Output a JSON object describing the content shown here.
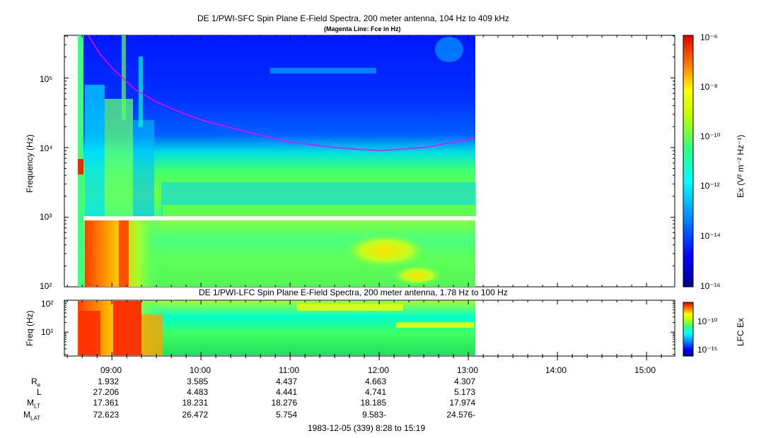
{
  "chart_data": [
    {
      "type": "heatmap",
      "title": "DE 1/PWI-SFC  Spin Plane E-Field Spectra, 200 meter antenna, 104 Hz to 409 kHz",
      "subtitle": "(Magenta Line: Fce in Hz)",
      "ylabel": "Frequency (Hz)",
      "yscale": "log",
      "ylim": [
        100,
        409000
      ],
      "y_ticks": [
        "10²",
        "10³",
        "10⁴",
        "10⁵"
      ],
      "colorbar": {
        "label": "Ex (V² m⁻² Hz⁻¹)",
        "scale": "log",
        "range": [
          1e-16,
          1e-06
        ],
        "ticks": [
          "10⁻⁶",
          "10⁻⁸",
          "10⁻¹⁰",
          "10⁻¹²",
          "10⁻¹⁴",
          "10⁻¹⁶"
        ]
      },
      "series": [
        {
          "name": "Fce",
          "color": "#ff00ff",
          "x": [
            "08:44",
            "08:52",
            "09:00",
            "09:15",
            "09:30",
            "09:45",
            "10:00",
            "10:30",
            "11:00",
            "11:30",
            "12:00",
            "12:30",
            "13:00",
            "13:04"
          ],
          "y": [
            450000,
            220000,
            140000,
            70000,
            45000,
            33000,
            25000,
            17000,
            12000,
            10000,
            9000,
            10000,
            13000,
            14000
          ]
        }
      ]
    },
    {
      "type": "heatmap",
      "title": "DE 1/PWI-LFC  Spin Plane E-Field Spectra, 200 meter antenna, 1.78 Hz to 100 Hz",
      "ylabel": "Freq (Hz)",
      "yscale": "log",
      "ylim": [
        1.78,
        100
      ],
      "y_ticks": [
        "10¹",
        "10²"
      ],
      "colorbar": {
        "label": "LFC Ex",
        "scale": "log",
        "range": [
          1e-16,
          1e-08
        ],
        "ticks": [
          "10⁻¹⁰",
          "10⁻¹⁵"
        ]
      }
    }
  ],
  "x_axis": {
    "ticks": [
      "09:00",
      "10:00",
      "11:00",
      "12:00",
      "13:00",
      "14:00",
      "15:00"
    ],
    "caption": "1983-12-05 (339) 8:28 to 15:19"
  },
  "orbit_rows": [
    {
      "label": "R",
      "sub": "e",
      "values": [
        "1.932",
        "3.585",
        "4.437",
        "4.663",
        "4.307"
      ]
    },
    {
      "label": "L",
      "sub": "",
      "values": [
        "27.206",
        "4.483",
        "4.441",
        "4.741",
        "5.173"
      ]
    },
    {
      "label": "M",
      "sub": "LT",
      "values": [
        "17.361",
        "18.231",
        "18.276",
        "18.185",
        "17.974"
      ]
    },
    {
      "label": "M",
      "sub": "LAT",
      "values": [
        "72.623",
        "26.472",
        "5.754",
        "-9.583",
        "-24.576"
      ]
    }
  ],
  "colors": {
    "fce_line": "#ff00ff"
  }
}
